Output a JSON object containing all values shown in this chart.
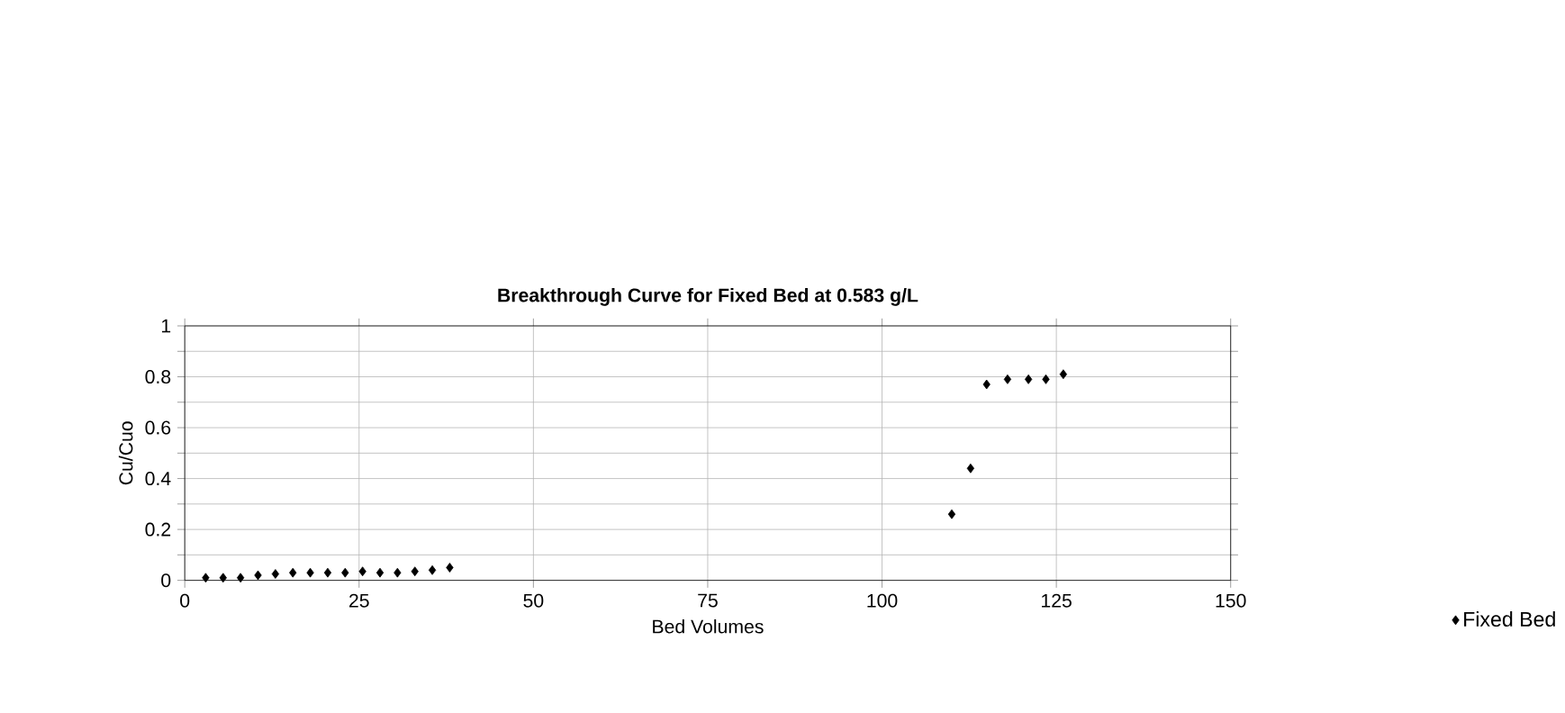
{
  "chart_data": {
    "type": "scatter",
    "title": "Breakthrough Curve for Fixed Bed at 0.583 g/L",
    "xlabel": "Bed Volumes",
    "ylabel": "Cu/Cuo",
    "x": [
      3,
      5.5,
      8,
      10.5,
      13,
      15.5,
      18,
      20.5,
      23,
      25.5,
      28,
      30.5,
      33,
      35.5,
      38,
      110,
      112.7,
      115,
      118,
      121,
      123.5,
      126
    ],
    "series": [
      {
        "name": "Fixed Bed",
        "color": "#000000",
        "values": [
          0.01,
          0.01,
          0.01,
          0.02,
          0.025,
          0.03,
          0.03,
          0.03,
          0.03,
          0.035,
          0.03,
          0.03,
          0.035,
          0.04,
          0.05,
          0.26,
          0.44,
          0.77,
          0.79,
          0.79,
          0.79,
          0.81
        ]
      }
    ],
    "xlim": [
      0,
      150
    ],
    "xticks": [
      0,
      25,
      50,
      75,
      100,
      125,
      150
    ],
    "ylim": [
      0,
      1
    ],
    "yticks": [
      0,
      {
        "value": 0.1,
        "label": null
      },
      0.2,
      {
        "value": 0.3,
        "label": null
      },
      0.4,
      {
        "value": 0.5,
        "label": null
      },
      0.6,
      {
        "value": 0.7,
        "label": null
      },
      0.8,
      {
        "value": 0.9,
        "label": null
      },
      1
    ],
    "grid": true,
    "legend": "bottom right",
    "marker": "diamond"
  }
}
